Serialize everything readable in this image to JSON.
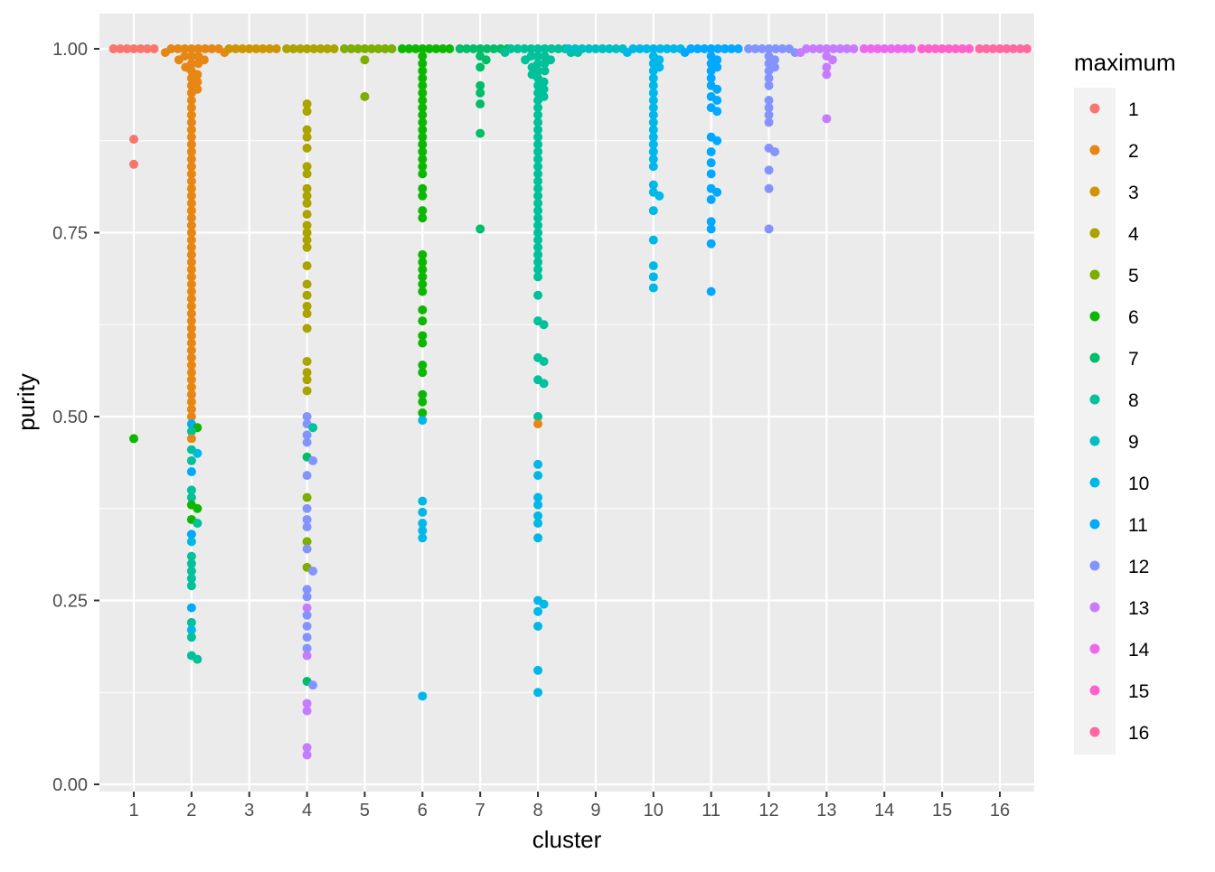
{
  "chart_data": {
    "type": "scatter",
    "subtype": "beeswarm",
    "xlabel": "cluster",
    "ylabel": "purity",
    "ylim": [
      0,
      1
    ],
    "yticks": [
      "0.00",
      "0.25",
      "0.50",
      "0.75",
      "1.00"
    ],
    "categories": [
      "1",
      "2",
      "3",
      "4",
      "5",
      "6",
      "7",
      "8",
      "9",
      "10",
      "11",
      "12",
      "13",
      "14",
      "15",
      "16"
    ],
    "grid": true,
    "legend": {
      "title": "maximum",
      "position": "right",
      "entries": [
        "1",
        "2",
        "3",
        "4",
        "5",
        "6",
        "7",
        "8",
        "9",
        "10",
        "11",
        "12",
        "13",
        "14",
        "15",
        "16"
      ]
    },
    "colors": [
      "#F8766D",
      "#E68613",
      "#CD9600",
      "#ABA300",
      "#7CAE00",
      "#0CB702",
      "#00BE67",
      "#00C19A",
      "#00BFC4",
      "#00B8E7",
      "#00A9FF",
      "#8494FF",
      "#C77CFF",
      "#ED68ED",
      "#FF61CC",
      "#FF68A1"
    ],
    "clusters": [
      {
        "cluster": 1,
        "main": 1,
        "count_at_1": 7,
        "values": [
          0.877,
          0.843
        ],
        "others": [
          [
            0.47,
            6
          ]
        ]
      },
      {
        "cluster": 2,
        "main": 2,
        "count_at_1": 8,
        "values": [
          0.995,
          0.995,
          0.99,
          0.99,
          0.99,
          0.985,
          0.985,
          0.98,
          0.98,
          0.975,
          0.97,
          0.965,
          0.96,
          0.955,
          0.95,
          0.945,
          0.94,
          0.93,
          0.92,
          0.91,
          0.9,
          0.89,
          0.88,
          0.87,
          0.86,
          0.85,
          0.84,
          0.83,
          0.82,
          0.81,
          0.8,
          0.79,
          0.78,
          0.77,
          0.76,
          0.75,
          0.74,
          0.73,
          0.72,
          0.71,
          0.7,
          0.69,
          0.68,
          0.67,
          0.66,
          0.65,
          0.64,
          0.63,
          0.62,
          0.61,
          0.6,
          0.59,
          0.58,
          0.57,
          0.56,
          0.55,
          0.54,
          0.53,
          0.52,
          0.51,
          0.5,
          0.47
        ],
        "others": [
          [
            0.49,
            11
          ],
          [
            0.485,
            6
          ],
          [
            0.48,
            8
          ],
          [
            0.455,
            8
          ],
          [
            0.45,
            10
          ],
          [
            0.44,
            8
          ],
          [
            0.425,
            11
          ],
          [
            0.4,
            8
          ],
          [
            0.39,
            8
          ],
          [
            0.38,
            6
          ],
          [
            0.375,
            6
          ],
          [
            0.36,
            6
          ],
          [
            0.355,
            8
          ],
          [
            0.34,
            11
          ],
          [
            0.33,
            10
          ],
          [
            0.31,
            8
          ],
          [
            0.3,
            8
          ],
          [
            0.29,
            8
          ],
          [
            0.28,
            8
          ],
          [
            0.27,
            8
          ],
          [
            0.24,
            11
          ],
          [
            0.22,
            8
          ],
          [
            0.21,
            10
          ],
          [
            0.2,
            8
          ],
          [
            0.175,
            8
          ],
          [
            0.17,
            8
          ]
        ]
      },
      {
        "cluster": 3,
        "main": 3,
        "count_at_1": 8,
        "values": [],
        "others": []
      },
      {
        "cluster": 4,
        "main": 4,
        "count_at_1": 8,
        "values": [
          0.925,
          0.915,
          0.89,
          0.88,
          0.865,
          0.84,
          0.83,
          0.81,
          0.8,
          0.79,
          0.775,
          0.76,
          0.75,
          0.74,
          0.73,
          0.705,
          0.68,
          0.665,
          0.65,
          0.64,
          0.62,
          0.575,
          0.56,
          0.55,
          0.535
        ],
        "others": [
          [
            0.5,
            12
          ],
          [
            0.49,
            12
          ],
          [
            0.485,
            8
          ],
          [
            0.475,
            12
          ],
          [
            0.465,
            12
          ],
          [
            0.445,
            7
          ],
          [
            0.44,
            12
          ],
          [
            0.42,
            12
          ],
          [
            0.39,
            5
          ],
          [
            0.375,
            12
          ],
          [
            0.36,
            12
          ],
          [
            0.35,
            12
          ],
          [
            0.33,
            5
          ],
          [
            0.32,
            12
          ],
          [
            0.295,
            5
          ],
          [
            0.29,
            12
          ],
          [
            0.265,
            12
          ],
          [
            0.255,
            12
          ],
          [
            0.24,
            13
          ],
          [
            0.23,
            12
          ],
          [
            0.215,
            12
          ],
          [
            0.2,
            12
          ],
          [
            0.185,
            12
          ],
          [
            0.175,
            13
          ],
          [
            0.14,
            7
          ],
          [
            0.135,
            12
          ],
          [
            0.11,
            13
          ],
          [
            0.1,
            13
          ],
          [
            0.05,
            13
          ],
          [
            0.04,
            13
          ]
        ]
      },
      {
        "cluster": 5,
        "main": 5,
        "count_at_1": 8,
        "values": [
          0.985,
          0.935
        ],
        "others": []
      },
      {
        "cluster": 6,
        "main": 6,
        "count_at_1": 8,
        "values": [
          0.99,
          0.98,
          0.97,
          0.96,
          0.95,
          0.94,
          0.93,
          0.92,
          0.91,
          0.9,
          0.89,
          0.88,
          0.87,
          0.86,
          0.85,
          0.84,
          0.83,
          0.81,
          0.8,
          0.78,
          0.77,
          0.72,
          0.71,
          0.7,
          0.69,
          0.68,
          0.67,
          0.645,
          0.63,
          0.61,
          0.6,
          0.57,
          0.56,
          0.53,
          0.52,
          0.505
        ],
        "others": [
          [
            0.495,
            10
          ],
          [
            0.385,
            10
          ],
          [
            0.37,
            10
          ],
          [
            0.355,
            10
          ],
          [
            0.345,
            10
          ],
          [
            0.335,
            10
          ],
          [
            0.12,
            10
          ]
        ]
      },
      {
        "cluster": 7,
        "main": 7,
        "count_at_1": 8,
        "values": [
          0.99,
          0.985,
          0.975,
          0.95,
          0.94,
          0.925,
          0.885,
          0.755
        ],
        "others": []
      },
      {
        "cluster": 8,
        "main": 8,
        "count_at_1": 9,
        "values": [
          0.995,
          0.995,
          0.995,
          0.99,
          0.99,
          0.99,
          0.985,
          0.985,
          0.98,
          0.98,
          0.975,
          0.97,
          0.97,
          0.965,
          0.96,
          0.955,
          0.95,
          0.945,
          0.94,
          0.935,
          0.93,
          0.92,
          0.91,
          0.9,
          0.89,
          0.88,
          0.87,
          0.86,
          0.85,
          0.84,
          0.83,
          0.82,
          0.81,
          0.8,
          0.79,
          0.78,
          0.77,
          0.76,
          0.75,
          0.74,
          0.73,
          0.72,
          0.71,
          0.7,
          0.69,
          0.665,
          0.63,
          0.625,
          0.58,
          0.575,
          0.55,
          0.545,
          0.5
        ],
        "others": [
          [
            0.49,
            2
          ],
          [
            0.435,
            10
          ],
          [
            0.42,
            10
          ],
          [
            0.39,
            10
          ],
          [
            0.38,
            10
          ],
          [
            0.365,
            10
          ],
          [
            0.355,
            10
          ],
          [
            0.335,
            10
          ],
          [
            0.25,
            10
          ],
          [
            0.245,
            10
          ],
          [
            0.235,
            10
          ],
          [
            0.215,
            10
          ],
          [
            0.155,
            10
          ],
          [
            0.125,
            10
          ]
        ]
      },
      {
        "cluster": 9,
        "main": 9,
        "count_at_1": 9,
        "values": [],
        "others": []
      },
      {
        "cluster": 10,
        "main": 10,
        "count_at_1": 8,
        "values": [
          0.995,
          0.99,
          0.985,
          0.98,
          0.975,
          0.97,
          0.96,
          0.95,
          0.94,
          0.93,
          0.92,
          0.91,
          0.9,
          0.89,
          0.88,
          0.87,
          0.86,
          0.85,
          0.84,
          0.815,
          0.805,
          0.8,
          0.78,
          0.74,
          0.705,
          0.69,
          0.675
        ],
        "others": []
      },
      {
        "cluster": 11,
        "main": 11,
        "count_at_1": 8,
        "values": [
          0.995,
          0.99,
          0.985,
          0.98,
          0.975,
          0.97,
          0.96,
          0.95,
          0.945,
          0.935,
          0.93,
          0.92,
          0.915,
          0.88,
          0.875,
          0.86,
          0.845,
          0.83,
          0.81,
          0.805,
          0.795,
          0.765,
          0.755,
          0.735,
          0.67
        ],
        "others": []
      },
      {
        "cluster": 12,
        "main": 12,
        "count_at_1": 7,
        "values": [
          0.995,
          0.99,
          0.985,
          0.98,
          0.975,
          0.97,
          0.96,
          0.95,
          0.93,
          0.92,
          0.91,
          0.9,
          0.865,
          0.86,
          0.835,
          0.81,
          0.755
        ],
        "others": []
      },
      {
        "cluster": 13,
        "main": 13,
        "count_at_1": 8,
        "values": [
          0.995,
          0.99,
          0.985,
          0.975,
          0.965,
          0.905
        ],
        "others": []
      },
      {
        "cluster": 14,
        "main": 14,
        "count_at_1": 8,
        "values": [],
        "others": []
      },
      {
        "cluster": 15,
        "main": 15,
        "count_at_1": 8,
        "values": [],
        "others": []
      },
      {
        "cluster": 16,
        "main": 16,
        "count_at_1": 8,
        "values": [],
        "others": []
      }
    ]
  }
}
